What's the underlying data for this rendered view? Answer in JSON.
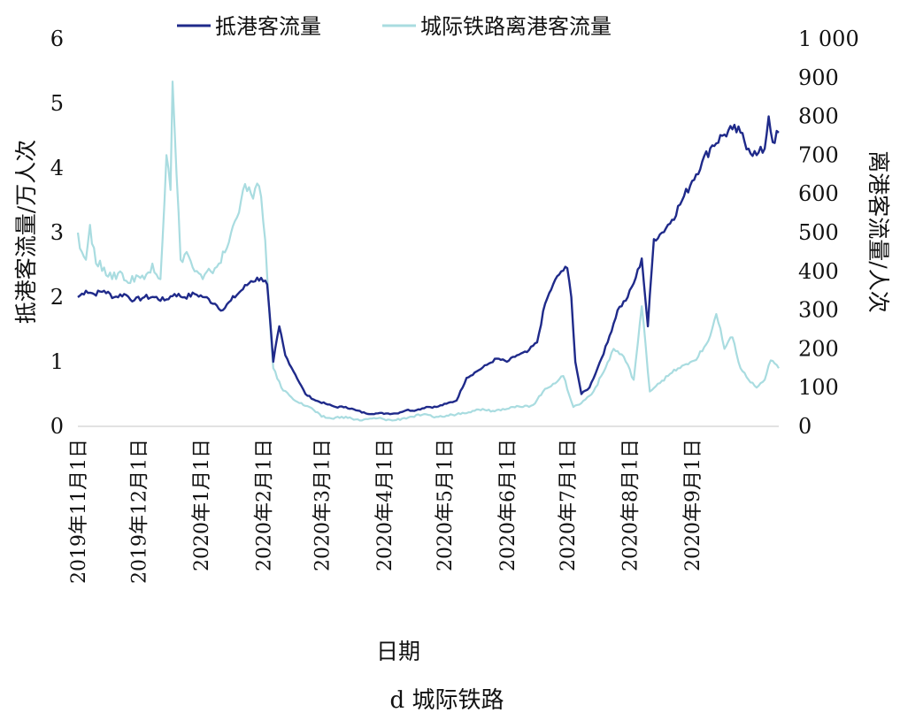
{
  "chart_data": {
    "type": "line",
    "xlabel": "日期",
    "caption": "d 城际铁路",
    "legend_position": "top",
    "grid": false,
    "left_axis": {
      "label": "抵港客流量/万人次",
      "range": [
        0,
        6
      ],
      "ticks": [
        "0",
        "1",
        "2",
        "3",
        "4",
        "5",
        "6"
      ]
    },
    "right_axis": {
      "label": "离港客流量/人次",
      "range": [
        0,
        1000
      ],
      "ticks": [
        "0",
        "100",
        "200",
        "300",
        "400",
        "500",
        "600",
        "700",
        "800",
        "900",
        "1 000"
      ]
    },
    "categories": [
      "2019年11月1日",
      "2019年12月1日",
      "2020年1月1日",
      "2020年2月1日",
      "2020年3月1日",
      "2020年4月1日",
      "2020年5月1日",
      "2020年6月1日",
      "2020年7月1日",
      "2020年8月1日",
      "2020年9月1日"
    ],
    "x_start": "2019-11-01",
    "x_end": "2020-10-14",
    "series": [
      {
        "name": "抵港客流量",
        "axis": "left",
        "color": "#1f2a8a",
        "points": [
          [
            "2019-11-01",
            2.0
          ],
          [
            "2019-11-05",
            2.1
          ],
          [
            "2019-11-09",
            2.05
          ],
          [
            "2019-11-14",
            2.1
          ],
          [
            "2019-11-19",
            2.0
          ],
          [
            "2019-11-24",
            2.05
          ],
          [
            "2019-11-29",
            1.95
          ],
          [
            "2019-12-04",
            2.0
          ],
          [
            "2019-12-09",
            2.0
          ],
          [
            "2019-12-14",
            1.95
          ],
          [
            "2019-12-19",
            2.05
          ],
          [
            "2019-12-24",
            2.0
          ],
          [
            "2019-12-29",
            2.05
          ],
          [
            "2020-01-03",
            2.0
          ],
          [
            "2020-01-08",
            1.9
          ],
          [
            "2020-01-12",
            1.8
          ],
          [
            "2020-01-16",
            1.95
          ],
          [
            "2020-01-21",
            2.1
          ],
          [
            "2020-01-26",
            2.25
          ],
          [
            "2020-01-31",
            2.3
          ],
          [
            "2020-02-03",
            2.2
          ],
          [
            "2020-02-06",
            1.0
          ],
          [
            "2020-02-09",
            1.55
          ],
          [
            "2020-02-12",
            1.1
          ],
          [
            "2020-02-17",
            0.8
          ],
          [
            "2020-02-22",
            0.5
          ],
          [
            "2020-02-27",
            0.4
          ],
          [
            "2020-03-03",
            0.35
          ],
          [
            "2020-03-08",
            0.3
          ],
          [
            "2020-03-13",
            0.3
          ],
          [
            "2020-03-18",
            0.25
          ],
          [
            "2020-03-23",
            0.2
          ],
          [
            "2020-03-28",
            0.2
          ],
          [
            "2020-04-02",
            0.2
          ],
          [
            "2020-04-07",
            0.2
          ],
          [
            "2020-04-12",
            0.25
          ],
          [
            "2020-04-17",
            0.25
          ],
          [
            "2020-04-22",
            0.3
          ],
          [
            "2020-04-27",
            0.3
          ],
          [
            "2020-05-02",
            0.35
          ],
          [
            "2020-05-07",
            0.4
          ],
          [
            "2020-05-12",
            0.75
          ],
          [
            "2020-05-17",
            0.85
          ],
          [
            "2020-05-22",
            0.95
          ],
          [
            "2020-05-27",
            1.05
          ],
          [
            "2020-06-01",
            1.0
          ],
          [
            "2020-06-06",
            1.1
          ],
          [
            "2020-06-11",
            1.15
          ],
          [
            "2020-06-16",
            1.3
          ],
          [
            "2020-06-20",
            1.9
          ],
          [
            "2020-06-24",
            2.2
          ],
          [
            "2020-06-28",
            2.4
          ],
          [
            "2020-07-01",
            2.45
          ],
          [
            "2020-07-03",
            2.0
          ],
          [
            "2020-07-05",
            1.0
          ],
          [
            "2020-07-08",
            0.5
          ],
          [
            "2020-07-12",
            0.6
          ],
          [
            "2020-07-16",
            0.9
          ],
          [
            "2020-07-21",
            1.3
          ],
          [
            "2020-07-26",
            1.8
          ],
          [
            "2020-07-31",
            2.0
          ],
          [
            "2020-08-04",
            2.3
          ],
          [
            "2020-08-07",
            2.6
          ],
          [
            "2020-08-10",
            1.55
          ],
          [
            "2020-08-13",
            2.9
          ],
          [
            "2020-08-17",
            3.0
          ],
          [
            "2020-08-22",
            3.2
          ],
          [
            "2020-08-27",
            3.5
          ],
          [
            "2020-09-01",
            3.8
          ],
          [
            "2020-09-06",
            4.1
          ],
          [
            "2020-09-11",
            4.35
          ],
          [
            "2020-09-16",
            4.5
          ],
          [
            "2020-09-21",
            4.6
          ],
          [
            "2020-09-25",
            4.55
          ],
          [
            "2020-09-29",
            4.3
          ],
          [
            "2020-10-03",
            4.2
          ],
          [
            "2020-10-07",
            4.3
          ],
          [
            "2020-10-09",
            4.8
          ],
          [
            "2020-10-11",
            4.4
          ],
          [
            "2020-10-14",
            4.55
          ]
        ]
      },
      {
        "name": "城际铁路离港客流量",
        "axis": "right",
        "color": "#a9dce0",
        "points": [
          [
            "2019-11-01",
            500
          ],
          [
            "2019-11-03",
            450
          ],
          [
            "2019-11-05",
            430
          ],
          [
            "2019-11-07",
            520
          ],
          [
            "2019-11-10",
            420
          ],
          [
            "2019-11-14",
            410
          ],
          [
            "2019-11-18",
            380
          ],
          [
            "2019-11-22",
            400
          ],
          [
            "2019-11-26",
            370
          ],
          [
            "2019-11-30",
            390
          ],
          [
            "2019-12-04",
            380
          ],
          [
            "2019-12-08",
            420
          ],
          [
            "2019-12-12",
            380
          ],
          [
            "2019-12-15",
            700
          ],
          [
            "2019-12-17",
            610
          ],
          [
            "2019-12-18",
            890
          ],
          [
            "2019-12-20",
            650
          ],
          [
            "2019-12-22",
            430
          ],
          [
            "2019-12-25",
            450
          ],
          [
            "2019-12-29",
            400
          ],
          [
            "2020-01-02",
            380
          ],
          [
            "2020-01-06",
            400
          ],
          [
            "2020-01-10",
            420
          ],
          [
            "2020-01-14",
            460
          ],
          [
            "2020-01-18",
            530
          ],
          [
            "2020-01-22",
            610
          ],
          [
            "2020-01-26",
            600
          ],
          [
            "2020-01-30",
            620
          ],
          [
            "2020-02-02",
            480
          ],
          [
            "2020-02-04",
            300
          ],
          [
            "2020-02-06",
            150
          ],
          [
            "2020-02-10",
            100
          ],
          [
            "2020-02-14",
            80
          ],
          [
            "2020-02-19",
            60
          ],
          [
            "2020-02-24",
            50
          ],
          [
            "2020-03-01",
            25
          ],
          [
            "2020-03-06",
            20
          ],
          [
            "2020-03-11",
            25
          ],
          [
            "2020-03-16",
            20
          ],
          [
            "2020-03-21",
            15
          ],
          [
            "2020-03-26",
            20
          ],
          [
            "2020-03-31",
            20
          ],
          [
            "2020-04-05",
            15
          ],
          [
            "2020-04-10",
            20
          ],
          [
            "2020-04-15",
            25
          ],
          [
            "2020-04-20",
            30
          ],
          [
            "2020-04-25",
            25
          ],
          [
            "2020-04-30",
            25
          ],
          [
            "2020-05-05",
            30
          ],
          [
            "2020-05-10",
            35
          ],
          [
            "2020-05-15",
            40
          ],
          [
            "2020-05-20",
            45
          ],
          [
            "2020-05-25",
            40
          ],
          [
            "2020-05-30",
            45
          ],
          [
            "2020-06-04",
            50
          ],
          [
            "2020-06-09",
            50
          ],
          [
            "2020-06-14",
            55
          ],
          [
            "2020-06-19",
            90
          ],
          [
            "2020-06-24",
            110
          ],
          [
            "2020-06-29",
            130
          ],
          [
            "2020-07-04",
            50
          ],
          [
            "2020-07-08",
            60
          ],
          [
            "2020-07-14",
            90
          ],
          [
            "2020-07-19",
            140
          ],
          [
            "2020-07-24",
            200
          ],
          [
            "2020-07-29",
            180
          ],
          [
            "2020-08-03",
            120
          ],
          [
            "2020-08-07",
            310
          ],
          [
            "2020-08-11",
            90
          ],
          [
            "2020-08-15",
            110
          ],
          [
            "2020-08-20",
            130
          ],
          [
            "2020-08-25",
            150
          ],
          [
            "2020-08-30",
            160
          ],
          [
            "2020-09-04",
            180
          ],
          [
            "2020-09-09",
            220
          ],
          [
            "2020-09-13",
            290
          ],
          [
            "2020-09-17",
            200
          ],
          [
            "2020-09-21",
            230
          ],
          [
            "2020-09-25",
            150
          ],
          [
            "2020-09-29",
            120
          ],
          [
            "2020-10-03",
            100
          ],
          [
            "2020-10-07",
            120
          ],
          [
            "2020-10-10",
            170
          ],
          [
            "2020-10-14",
            150
          ]
        ]
      }
    ]
  }
}
